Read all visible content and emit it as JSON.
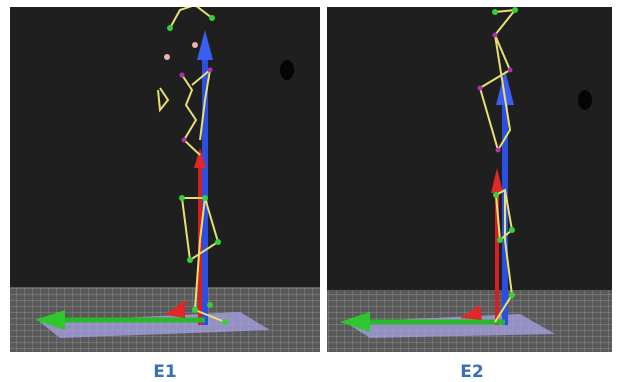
{
  "panels": [
    {
      "label": "E1"
    },
    {
      "label": "E2"
    }
  ]
}
